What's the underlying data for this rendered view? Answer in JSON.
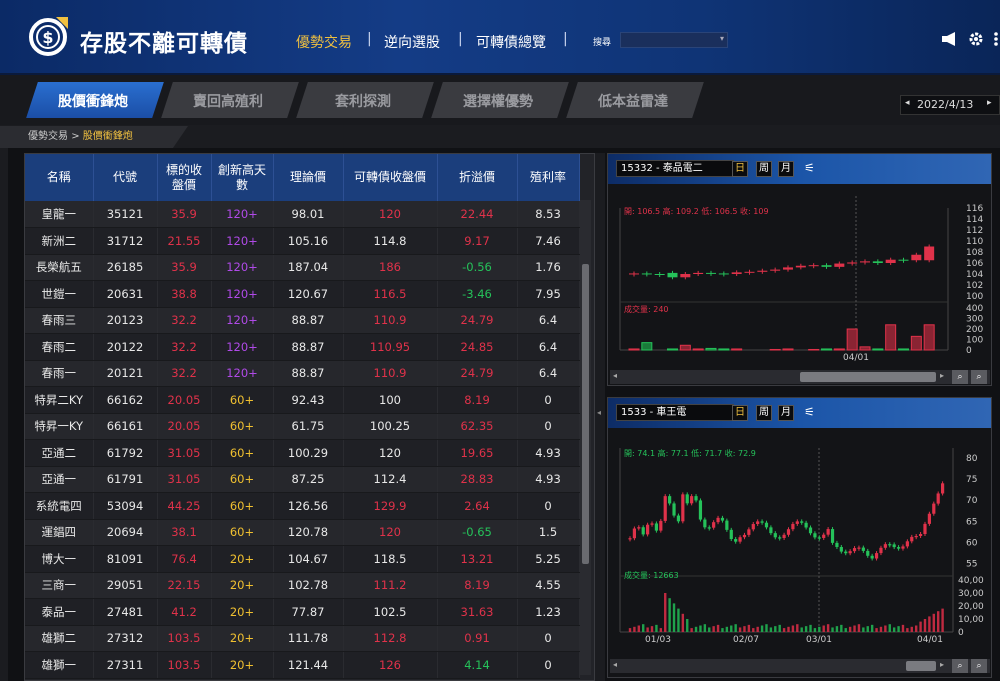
{
  "header": {
    "app_title": "存股不離可轉債",
    "nav": [
      "優勢交易",
      "逆向選股",
      "可轉債總覽"
    ],
    "active_nav_index": 0,
    "search_label": "搜尋",
    "search_value": "",
    "accent_color": "#f0c040",
    "icons": [
      "megaphone-icon",
      "gear-icon",
      "more-icon"
    ]
  },
  "tabs": [
    {
      "label": "股價衝鋒炮",
      "active": true
    },
    {
      "label": "賣回高殖利",
      "active": false
    },
    {
      "label": "套利探測",
      "active": false
    },
    {
      "label": "選擇權優勢",
      "active": false
    },
    {
      "label": "低本益雷達",
      "active": false
    }
  ],
  "date_picker": {
    "value": "2022/4/13",
    "prev": "◂",
    "next": "▸"
  },
  "breadcrumb": {
    "root": "優勢交易",
    "sep": ">",
    "current": "股價衝鋒炮"
  },
  "table": {
    "columns": [
      "名稱",
      "代號",
      "標的收\n盤價",
      "創新高天\n數",
      "理論價",
      "可轉債收盤價",
      "折溢價",
      "殖利率"
    ],
    "rows": [
      {
        "name": "皇龍一",
        "code": "35121",
        "close": "35.9",
        "days": "120+",
        "theory": "98.01",
        "cb_close": "120",
        "premium": "22.44",
        "yield": "8.53",
        "cc": "red",
        "dc": "purple",
        "pc": "red",
        "bc": "red"
      },
      {
        "name": "新洲二",
        "code": "31712",
        "close": "21.55",
        "days": "120+",
        "theory": "105.16",
        "cb_close": "114.8",
        "premium": "9.17",
        "yield": "7.46",
        "cc": "red",
        "dc": "purple",
        "pc": "red",
        "bc": "white"
      },
      {
        "name": "長榮航五",
        "code": "26185",
        "close": "35.9",
        "days": "120+",
        "theory": "187.04",
        "cb_close": "186",
        "premium": "-0.56",
        "yield": "1.76",
        "cc": "red",
        "dc": "purple",
        "pc": "green",
        "bc": "red"
      },
      {
        "name": "世鎧一",
        "code": "20631",
        "close": "38.8",
        "days": "120+",
        "theory": "120.67",
        "cb_close": "116.5",
        "premium": "-3.46",
        "yield": "7.95",
        "cc": "red",
        "dc": "purple",
        "pc": "green",
        "bc": "red"
      },
      {
        "name": "春雨三",
        "code": "20123",
        "close": "32.2",
        "days": "120+",
        "theory": "88.87",
        "cb_close": "110.9",
        "premium": "24.79",
        "yield": "6.4",
        "cc": "red",
        "dc": "purple",
        "pc": "red",
        "bc": "red"
      },
      {
        "name": "春雨二",
        "code": "20122",
        "close": "32.2",
        "days": "120+",
        "theory": "88.87",
        "cb_close": "110.95",
        "premium": "24.85",
        "yield": "6.4",
        "cc": "red",
        "dc": "purple",
        "pc": "red",
        "bc": "red"
      },
      {
        "name": "春雨一",
        "code": "20121",
        "close": "32.2",
        "days": "120+",
        "theory": "88.87",
        "cb_close": "110.9",
        "premium": "24.79",
        "yield": "6.4",
        "cc": "red",
        "dc": "purple",
        "pc": "red",
        "bc": "red"
      },
      {
        "name": "特昇二KY",
        "code": "66162",
        "close": "20.05",
        "days": "60+",
        "theory": "92.43",
        "cb_close": "100",
        "premium": "8.19",
        "yield": "0",
        "cc": "red",
        "dc": "yellow",
        "pc": "red",
        "bc": "white"
      },
      {
        "name": "特昇一KY",
        "code": "66161",
        "close": "20.05",
        "days": "60+",
        "theory": "61.75",
        "cb_close": "100.25",
        "premium": "62.35",
        "yield": "0",
        "cc": "red",
        "dc": "yellow",
        "pc": "red",
        "bc": "white"
      },
      {
        "name": "亞通二",
        "code": "61792",
        "close": "31.05",
        "days": "60+",
        "theory": "100.29",
        "cb_close": "120",
        "premium": "19.65",
        "yield": "4.93",
        "cc": "red",
        "dc": "yellow",
        "pc": "red",
        "bc": "white"
      },
      {
        "name": "亞通一",
        "code": "61791",
        "close": "31.05",
        "days": "60+",
        "theory": "87.25",
        "cb_close": "112.4",
        "premium": "28.83",
        "yield": "4.93",
        "cc": "red",
        "dc": "yellow",
        "pc": "red",
        "bc": "white"
      },
      {
        "name": "系統電四",
        "code": "53094",
        "close": "44.25",
        "days": "60+",
        "theory": "126.56",
        "cb_close": "129.9",
        "premium": "2.64",
        "yield": "0",
        "cc": "red",
        "dc": "yellow",
        "pc": "red",
        "bc": "red"
      },
      {
        "name": "運錩四",
        "code": "20694",
        "close": "38.1",
        "days": "60+",
        "theory": "120.78",
        "cb_close": "120",
        "premium": "-0.65",
        "yield": "1.5",
        "cc": "red",
        "dc": "yellow",
        "pc": "green",
        "bc": "red"
      },
      {
        "name": "博大一",
        "code": "81091",
        "close": "76.4",
        "days": "20+",
        "theory": "104.67",
        "cb_close": "118.5",
        "premium": "13.21",
        "yield": "5.25",
        "cc": "red",
        "dc": "yellow",
        "pc": "red",
        "bc": "white"
      },
      {
        "name": "三商一",
        "code": "29051",
        "close": "22.15",
        "days": "20+",
        "theory": "102.78",
        "cb_close": "111.2",
        "premium": "8.19",
        "yield": "4.55",
        "cc": "red",
        "dc": "yellow",
        "pc": "red",
        "bc": "red"
      },
      {
        "name": "泰品一",
        "code": "27481",
        "close": "41.2",
        "days": "20+",
        "theory": "77.87",
        "cb_close": "102.5",
        "premium": "31.63",
        "yield": "1.23",
        "cc": "red",
        "dc": "yellow",
        "pc": "red",
        "bc": "white"
      },
      {
        "name": "雄獅二",
        "code": "27312",
        "close": "103.5",
        "days": "20+",
        "theory": "111.78",
        "cb_close": "112.8",
        "premium": "0.91",
        "yield": "0",
        "cc": "red",
        "dc": "yellow",
        "pc": "red",
        "bc": "red"
      },
      {
        "name": "雄獅一",
        "code": "27311",
        "close": "103.5",
        "days": "20+",
        "theory": "121.44",
        "cb_close": "126",
        "premium": "4.14",
        "yield": "0",
        "cc": "red",
        "dc": "yellow",
        "pc": "green",
        "bc": "red"
      }
    ]
  },
  "chart1": {
    "code": "15332 - 泰品電二",
    "buttons": [
      "日",
      "周",
      "月"
    ],
    "ohlc_label": "開: 106.5  高: 109.2  低: 106.5  收: 109",
    "volume_label": "成交量: 240",
    "x_tick": "04/01",
    "y_ticks": [
      "116",
      "114",
      "112",
      "110",
      "108",
      "106",
      "104",
      "102",
      "100"
    ],
    "vol_ticks": [
      "400",
      "300",
      "200",
      "100",
      "0"
    ],
    "ylim": [
      100,
      116
    ],
    "vol_max": 400,
    "closes": [
      104.1,
      104.0,
      103.9,
      103.4,
      104.0,
      104.2,
      104.1,
      104.0,
      104.3,
      104.4,
      104.6,
      104.8,
      105.2,
      105.5,
      105.6,
      105.3,
      105.9,
      106.1,
      106.3,
      106.0,
      106.6,
      106.5,
      107.5,
      109.0
    ],
    "opens": [
      104.0,
      104.1,
      104.0,
      104.2,
      103.4,
      104.0,
      104.2,
      104.1,
      104.0,
      104.3,
      104.4,
      104.6,
      104.8,
      105.2,
      105.5,
      105.6,
      105.3,
      105.9,
      106.1,
      106.3,
      106.0,
      106.6,
      106.5,
      106.5
    ],
    "volumes": [
      10,
      70,
      0,
      10,
      45,
      10,
      15,
      10,
      10,
      0,
      0,
      5,
      10,
      0,
      5,
      10,
      10,
      200,
      30,
      10,
      240,
      10,
      130,
      240
    ]
  },
  "chart2": {
    "code": "1533 - 車王電",
    "buttons": [
      "日",
      "周",
      "月"
    ],
    "ohlc_label": "開: 74.1  高: 77.1  低: 71.7  收: 72.9",
    "volume_label": "成交量: 12663",
    "x_ticks": [
      "01/03",
      "02/07",
      "03/01",
      "04/01"
    ],
    "y_ticks": [
      "80",
      "75",
      "70",
      "65",
      "60",
      "55"
    ],
    "vol_ticks": [
      "40,00",
      "30,00",
      "20,00",
      "10,00",
      "0"
    ],
    "ylim": [
      53,
      80
    ],
    "vol_max": 40000
  },
  "colors": {
    "up": "#e0324a",
    "down": "#25c25a",
    "header_blue": "#1b3e7c"
  }
}
